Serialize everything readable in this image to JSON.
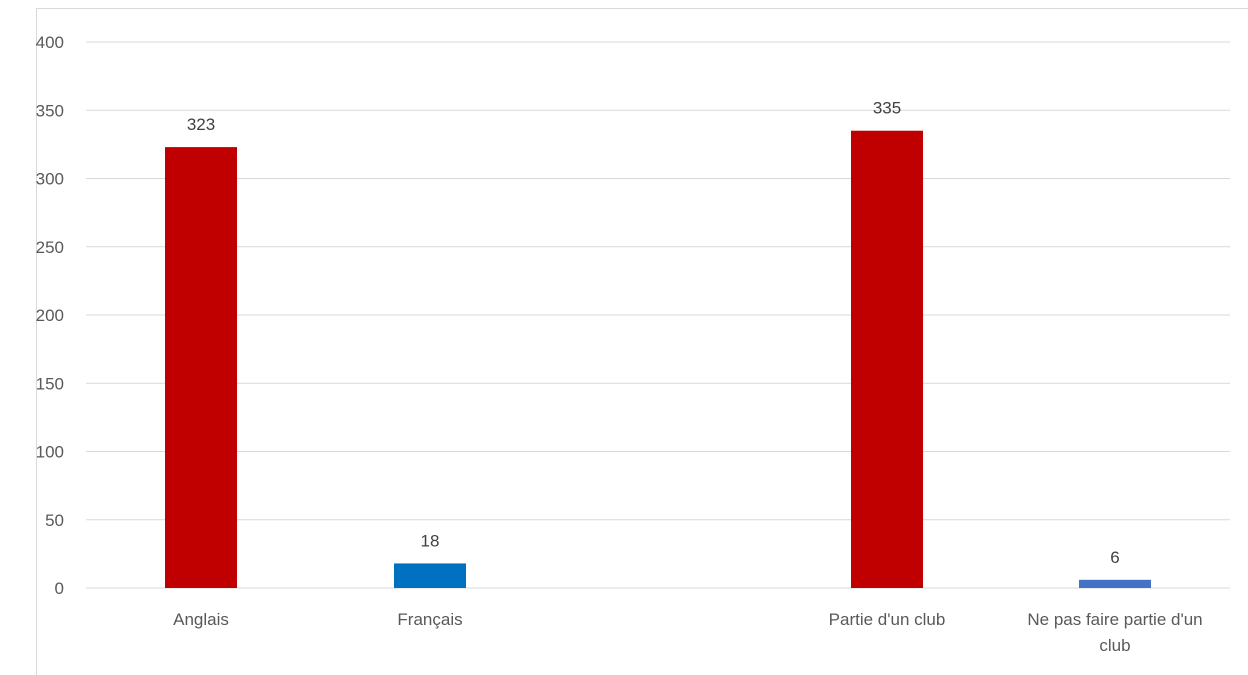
{
  "chart_data": {
    "type": "bar",
    "title": "",
    "xlabel": "",
    "ylabel": "",
    "ylim": [
      0,
      400
    ],
    "ytick_step": 50,
    "yticks": [
      "0",
      "50",
      "100",
      "150",
      "200",
      "250",
      "300",
      "350",
      "400"
    ],
    "grid": true,
    "legend": "none",
    "categories": [
      {
        "label_lines": [
          "Anglais"
        ],
        "value": 323,
        "color": "#C00000"
      },
      {
        "label_lines": [
          "Français"
        ],
        "value": 18,
        "color": "#0070C0"
      },
      {
        "label_lines": [
          "Partie d'un club"
        ],
        "value": 335,
        "color": "#C00000"
      },
      {
        "label_lines": [
          "Ne pas faire partie d'un",
          "club"
        ],
        "value": 6,
        "color": "#4472C4"
      }
    ]
  }
}
